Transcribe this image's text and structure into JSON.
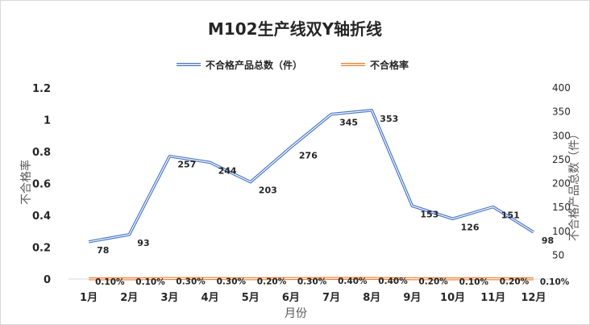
{
  "chart_data": {
    "type": "line",
    "title": "M102生产线双Y轴折线",
    "xlabel": "月份",
    "ylabel_left": "不合格率",
    "ylabel_right": "不合格产品总数（件）",
    "categories": [
      "1月",
      "2月",
      "3月",
      "4月",
      "5月",
      "6月",
      "7月",
      "8月",
      "9月",
      "10月",
      "11月",
      "12月"
    ],
    "left_axis": {
      "min": 0,
      "max": 1.2,
      "ticks": [
        "0",
        "0.2",
        "0.4",
        "0.6",
        "0.8",
        "1",
        "1.2"
      ]
    },
    "right_axis": {
      "min": 0,
      "max": 400,
      "ticks": [
        "50",
        "100",
        "150",
        "200",
        "250",
        "300",
        "350",
        "400"
      ]
    },
    "legend_position": "top",
    "grid": false,
    "series": [
      {
        "name": "不合格产品总数（件）",
        "axis": "right",
        "color": "#4472c4",
        "values": [
          78,
          93,
          257,
          244,
          203,
          276,
          345,
          353,
          153,
          126,
          151,
          98
        ],
        "labels": [
          "78",
          "93",
          "257",
          "244",
          "203",
          "276",
          "345",
          "353",
          "153",
          "126",
          "151",
          "98"
        ]
      },
      {
        "name": "不合格率",
        "axis": "left",
        "color": "#ed7d31",
        "values": [
          0.001,
          0.001,
          0.003,
          0.003,
          0.002,
          0.003,
          0.004,
          0.004,
          0.002,
          0.001,
          0.002,
          0.001
        ],
        "labels": [
          "0.10%",
          "0.10%",
          "0.30%",
          "0.30%",
          "0.20%",
          "0.30%",
          "0.40%",
          "0.40%",
          "0.20%",
          "0.10%",
          "0.20%",
          "0.10%"
        ]
      }
    ]
  }
}
